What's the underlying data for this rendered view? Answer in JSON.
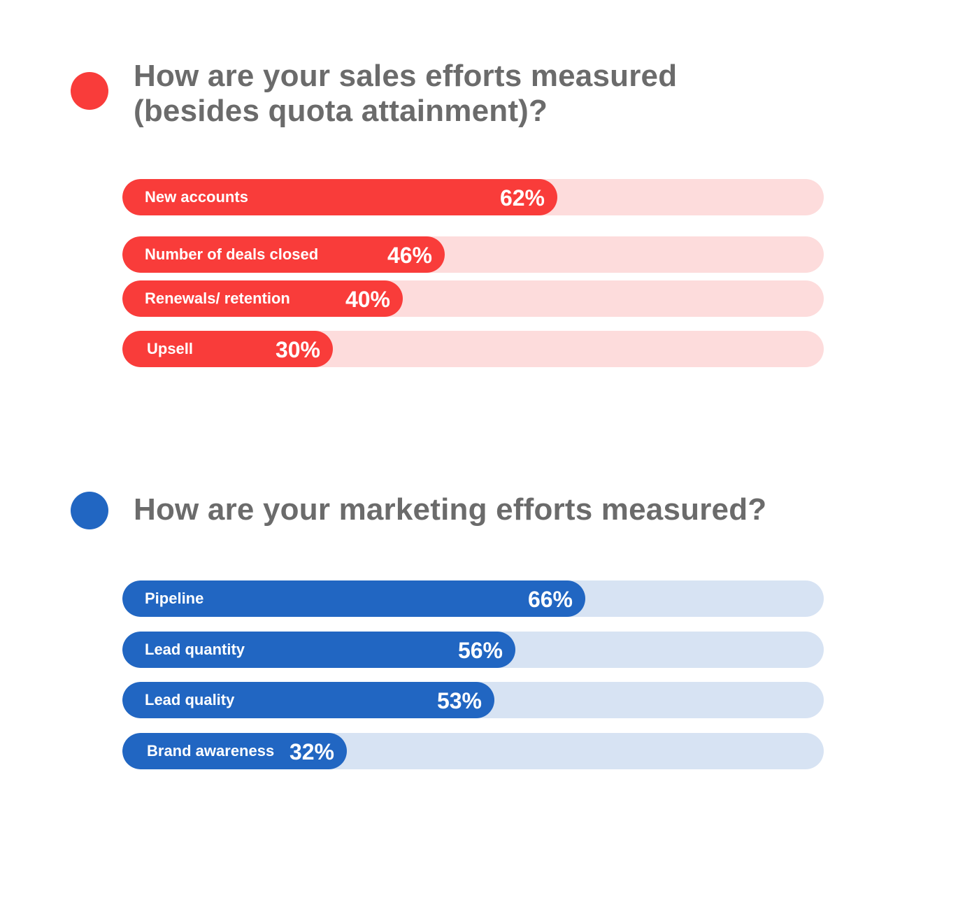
{
  "colors": {
    "sales_accent": "#f93c3a",
    "sales_track": "#fddcdc",
    "marketing_accent": "#2166c2",
    "marketing_track": "#d7e3f3",
    "heading_text": "#6b6b6b"
  },
  "chart_data": [
    {
      "type": "bar",
      "orientation": "horizontal",
      "title": "How are your sales efforts measured\n(besides quota attainment)?",
      "categories": [
        "New accounts",
        "Number of deals closed",
        "Renewals/ retention",
        "Upsell"
      ],
      "values": [
        62,
        46,
        40,
        30
      ],
      "value_labels": [
        "62%",
        "46%",
        "40%",
        "30%"
      ],
      "xlim": [
        0,
        100
      ],
      "grid": false,
      "legend": "none"
    },
    {
      "type": "bar",
      "orientation": "horizontal",
      "title": "How are your marketing efforts measured?",
      "categories": [
        "Pipeline",
        "Lead quantity",
        "Lead quality",
        "Brand awareness"
      ],
      "values": [
        66,
        56,
        53,
        32
      ],
      "value_labels": [
        "66%",
        "56%",
        "53%",
        "32%"
      ],
      "xlim": [
        0,
        100
      ],
      "grid": false,
      "legend": "none"
    }
  ]
}
